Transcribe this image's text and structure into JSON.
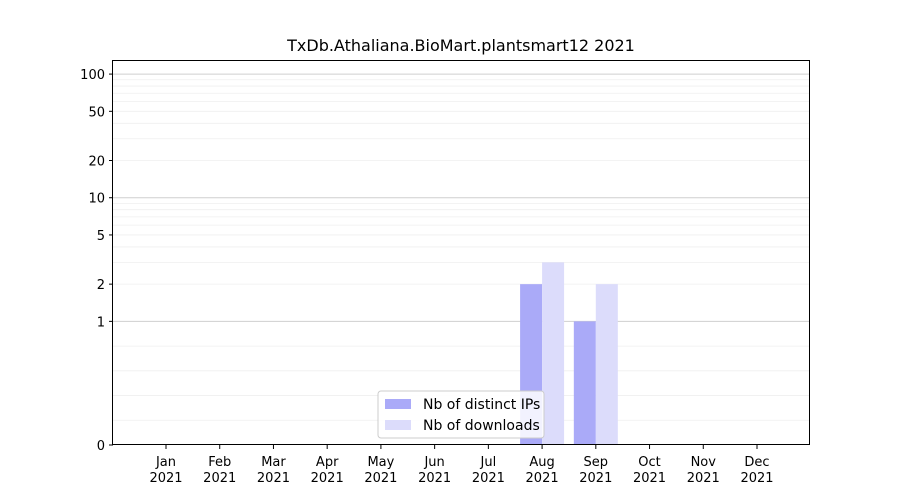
{
  "chart_data": {
    "type": "bar",
    "title": "TxDb.Athaliana.BioMart.plantsmart12 2021",
    "xlabel": "",
    "ylabel": "",
    "y_scale": "symlog",
    "ylim": [
      0,
      130
    ],
    "grid": true,
    "legend_position": "lower center",
    "categories": [
      [
        "Jan",
        "2021"
      ],
      [
        "Feb",
        "2021"
      ],
      [
        "Mar",
        "2021"
      ],
      [
        "Apr",
        "2021"
      ],
      [
        "May",
        "2021"
      ],
      [
        "Jun",
        "2021"
      ],
      [
        "Jul",
        "2021"
      ],
      [
        "Aug",
        "2021"
      ],
      [
        "Sep",
        "2021"
      ],
      [
        "Oct",
        "2021"
      ],
      [
        "Nov",
        "2021"
      ],
      [
        "Dec",
        "2021"
      ]
    ],
    "y_ticks": [
      "0",
      "1",
      "2",
      "5",
      "10",
      "20",
      "50",
      "100"
    ],
    "series": [
      {
        "name": "Nb of distinct IPs",
        "color": "#aaaaf8",
        "values": [
          0,
          0,
          0,
          0,
          0,
          0,
          0,
          2,
          1,
          0,
          0,
          0
        ]
      },
      {
        "name": "Nb of downloads",
        "color": "#dcdcfb",
        "values": [
          0,
          0,
          0,
          0,
          0,
          0,
          0,
          3,
          2,
          0,
          0,
          0
        ]
      }
    ]
  }
}
